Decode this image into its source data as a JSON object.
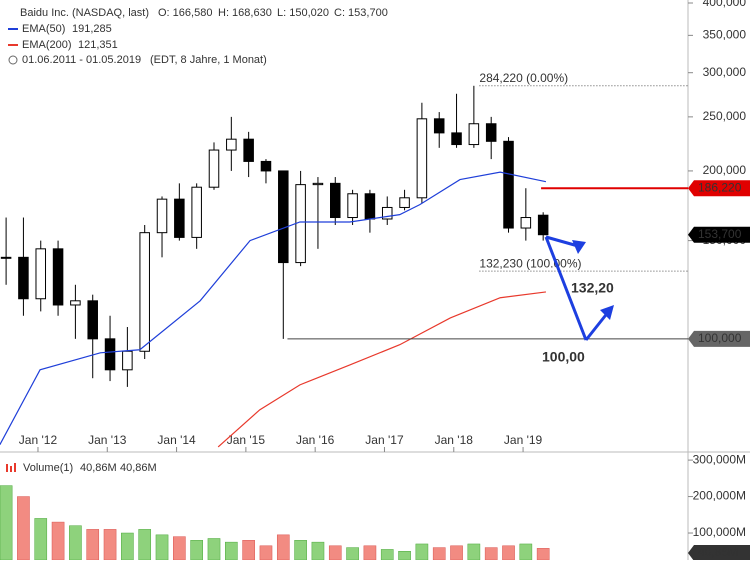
{
  "chart_data": [
    {
      "type": "candlestick",
      "title": "Baidu Inc. (NASDAQ, last)",
      "info": [
        "O: 166,580",
        "H: 168,630",
        "L: 150,020",
        "C: 153,700"
      ],
      "subtitle": "01.06.2011 - 01.05.2019",
      "note": "(EDT, 8 Jahre, 1 Monat)",
      "x": [
        2011.54,
        2011.79,
        2012.04,
        2012.29,
        2012.54,
        2012.79,
        2013.04,
        2013.29,
        2013.54,
        2013.79,
        2014.04,
        2014.29,
        2014.54,
        2014.79,
        2015.04,
        2015.29,
        2015.54,
        2015.79,
        2016.04,
        2016.29,
        2016.54,
        2016.79,
        2017.04,
        2017.29,
        2017.54,
        2017.79,
        2018.04,
        2018.29,
        2018.54,
        2018.79,
        2019.04,
        2019.29
      ],
      "open": [
        140,
        140,
        118,
        145,
        115,
        117,
        100,
        88,
        95,
        155,
        178,
        152,
        187,
        218,
        228,
        208,
        200,
        137,
        189,
        190,
        165,
        182,
        164,
        172,
        179,
        248,
        234,
        223,
        243,
        226,
        158,
        166.58
      ],
      "high": [
        165,
        165,
        150,
        150,
        125,
        120,
        110,
        105,
        160,
        180,
        190,
        190,
        225,
        250,
        235,
        210,
        200,
        200,
        195,
        195,
        185,
        185,
        180,
        185,
        265,
        255,
        275,
        284.22,
        250,
        230,
        186.22,
        168.63
      ],
      "low": [
        125,
        110,
        112,
        110,
        100,
        85,
        84,
        82,
        92,
        140,
        150,
        145,
        185,
        200,
        195,
        190,
        100,
        135,
        145,
        160,
        160,
        155,
        160,
        170,
        175,
        220,
        220,
        220,
        210,
        155,
        150,
        150.02
      ],
      "close": [
        140,
        118,
        145,
        115,
        117,
        100,
        88,
        95,
        155,
        178,
        152,
        187,
        218,
        228,
        208,
        200,
        137,
        189,
        190,
        165,
        182,
        164,
        172,
        179,
        248,
        234,
        223,
        243,
        226,
        158,
        165,
        153.7
      ],
      "up_color": "#ffffff",
      "down_color": "#000000",
      "lines": [
        {
          "name": "EMA(50)",
          "value_label": "191,285",
          "color": "#1f3fd9",
          "x": [
            2011.45,
            2012.03,
            2012.9,
            2013.47,
            2014.34,
            2015.06,
            2015.78,
            2016.5,
            2017.22,
            2017.51,
            2018.09,
            2018.67,
            2019.33
          ],
          "values": [
            64.6,
            88,
            94.4,
            95.6,
            117,
            150,
            162,
            162,
            167,
            174,
            193,
            199,
            191.285
          ]
        },
        {
          "name": "EMA(200)",
          "value_label": "121,351",
          "color": "#e8392c",
          "x": [
            2014.6,
            2015.2,
            2015.78,
            2016.5,
            2017.22,
            2017.95,
            2018.67,
            2019.33
          ],
          "values": [
            64,
            74.6,
            82.7,
            89.8,
            97.6,
            109,
            118.5,
            121.351
          ]
        }
      ],
      "levels": [
        {
          "value": 284.22,
          "label": "284,220 (0.00%)",
          "from": 2018.37,
          "style": "dotted",
          "color": "#555555"
        },
        {
          "value": 132.23,
          "label": "132,230 (100.00%)",
          "from": 2018.37,
          "style": "dotted",
          "color": "#555555"
        },
        {
          "value": 100,
          "label": "100,000",
          "from": 2015.6,
          "style": "solid",
          "color": "#444444",
          "tag_color": "#666666"
        },
        {
          "value": 186.22,
          "label": "186,220",
          "from": 2019.26,
          "style": "solid",
          "color": "#e00000",
          "tag_color": "#e00000"
        },
        {
          "value": 153.7,
          "label": "153,700",
          "style": "none",
          "color": "#000000",
          "tag_color": "#000000"
        }
      ],
      "arrow_labels": [
        "132,20",
        "100,00"
      ],
      "log_scale": true,
      "ylim": [
        63.2,
        405
      ],
      "yticks": [
        {
          "value": 150,
          "label": "150,000"
        },
        {
          "value": 200,
          "label": "200,000"
        },
        {
          "value": 250,
          "label": "250,000"
        },
        {
          "value": 300,
          "label": "300,000"
        },
        {
          "value": 350,
          "label": "350,000"
        },
        {
          "value": 400,
          "label": "400,000"
        }
      ],
      "xlim": [
        2011.452,
        2021.38
      ],
      "xticks": [
        {
          "value": 2012,
          "label": "Jan '12"
        },
        {
          "value": 2013,
          "label": "Jan '13"
        },
        {
          "value": 2014,
          "label": "Jan '14"
        },
        {
          "value": 2015,
          "label": "Jan '15"
        },
        {
          "value": 2016,
          "label": "Jan '16"
        },
        {
          "value": 2017,
          "label": "Jan '17"
        },
        {
          "value": 2018,
          "label": "Jan '18"
        },
        {
          "value": 2019,
          "label": "Jan '19"
        }
      ]
    },
    {
      "type": "bar",
      "name": "Volume(1)",
      "legend_values": [
        "40,86M",
        "40,86M"
      ],
      "legend_colors": [
        "#e8392c",
        "#2aa7c9"
      ],
      "tag": "40,86M",
      "x": [
        2011.54,
        2011.79,
        2012.04,
        2012.29,
        2012.54,
        2012.79,
        2013.04,
        2013.29,
        2013.54,
        2013.79,
        2014.04,
        2014.29,
        2014.54,
        2014.79,
        2015.04,
        2015.29,
        2015.54,
        2015.79,
        2016.04,
        2016.29,
        2016.54,
        2016.79,
        2017.04,
        2017.29,
        2017.54,
        2017.79,
        2018.04,
        2018.29,
        2018.54,
        2018.79,
        2019.04,
        2019.29
      ],
      "values": [
        230000,
        200000,
        140000,
        130000,
        120000,
        110000,
        110000,
        100000,
        110000,
        95000,
        90000,
        80000,
        85000,
        75000,
        80000,
        65000,
        95000,
        80000,
        75000,
        65000,
        60000,
        65000,
        55000,
        50000,
        70000,
        60000,
        65000,
        70000,
        60000,
        65000,
        70000,
        58000
      ],
      "up_color": "#8ed27c",
      "down_color": "#f28b82",
      "ylim": [
        26000,
        314000
      ],
      "yticks": [
        {
          "value": 100000,
          "label": "100,000M"
        },
        {
          "value": 200000,
          "label": "200,000M"
        },
        {
          "value": 300000,
          "label": "300,000M"
        }
      ],
      "xlim": [
        2011.452,
        2021.38
      ]
    }
  ]
}
